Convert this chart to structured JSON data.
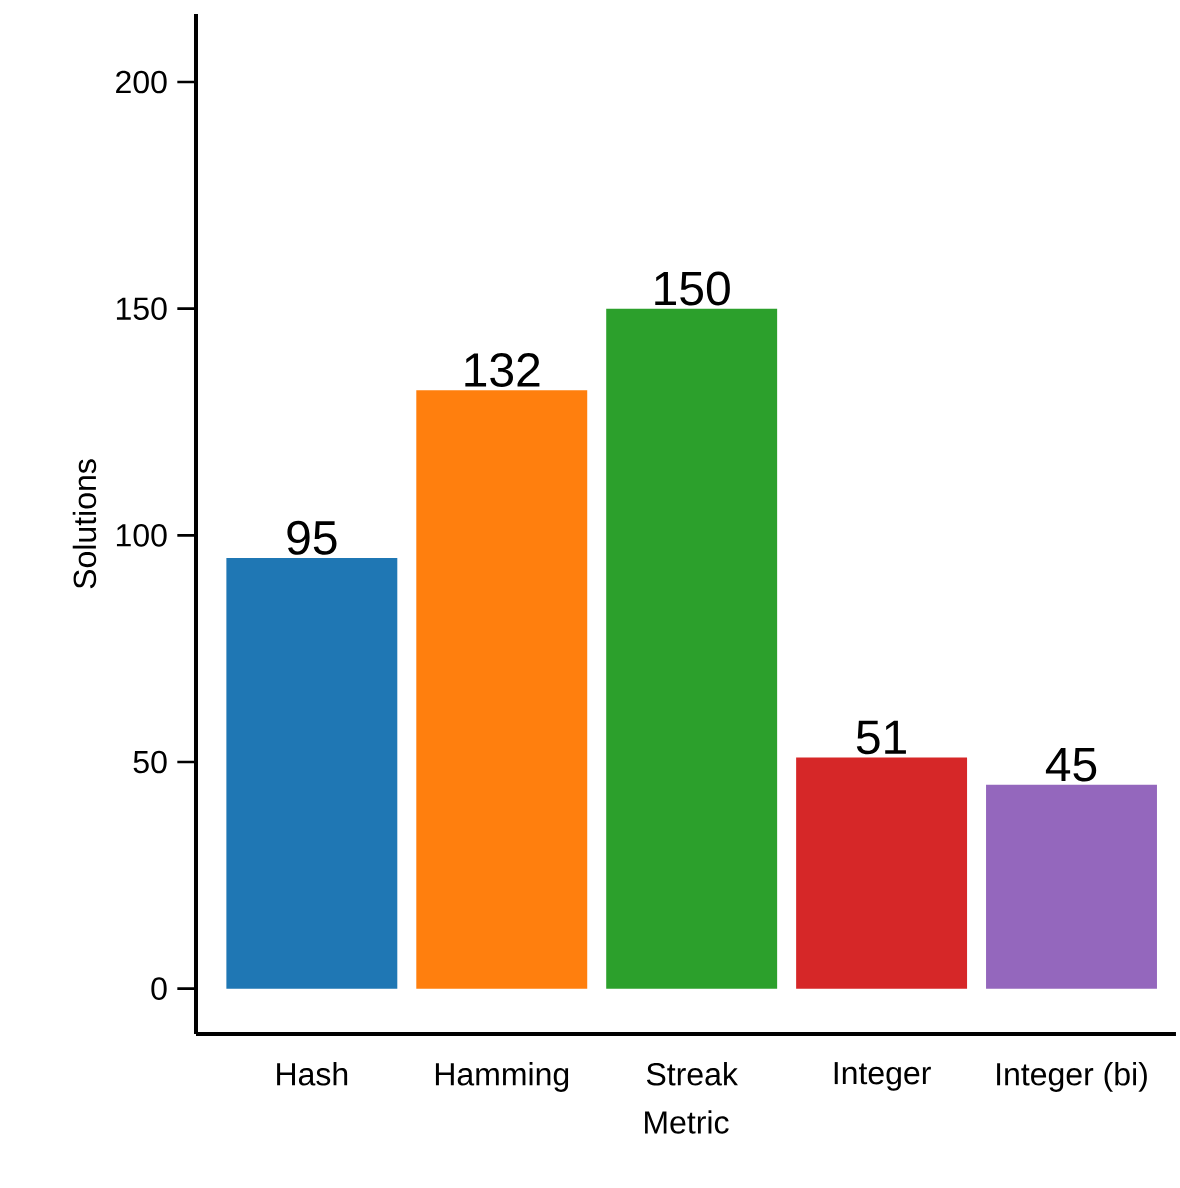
{
  "chart_data": {
    "type": "bar",
    "xlabel": "Metric",
    "ylabel": "Solutions",
    "categories": [
      "Hash",
      "Hamming",
      "Streak",
      "Integer",
      "Integer (bi)"
    ],
    "values": [
      95,
      132,
      150,
      51,
      45
    ],
    "colors": [
      "#1f77b4",
      "#ff7f0e",
      "#2ca02c",
      "#d62728",
      "#9467bd"
    ],
    "ylim": [
      -10,
      215
    ],
    "yticks": [
      0,
      50,
      100,
      150,
      200
    ],
    "data_labels": true,
    "grid": false
  }
}
